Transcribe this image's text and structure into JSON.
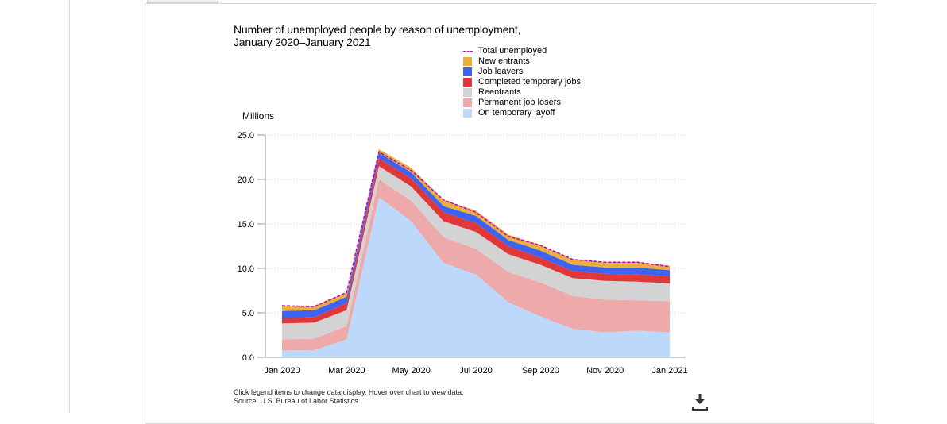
{
  "chart_data": {
    "type": "area",
    "stacked": true,
    "title_lines": [
      "Number of unemployed people by reason of unemployment,",
      "January 2020–January 2021"
    ],
    "ylabel": "Millions",
    "ylim": [
      0,
      25
    ],
    "yticks": [
      "0.0",
      "5.0",
      "10.0",
      "15.0",
      "20.0",
      "25.0"
    ],
    "ytick_values": [
      0,
      5,
      10,
      15,
      20,
      25
    ],
    "x": [
      "Jan 2020",
      "Feb 2020",
      "Mar 2020",
      "Apr 2020",
      "May 2020",
      "Jun 2020",
      "Jul 2020",
      "Aug 2020",
      "Sep 2020",
      "Oct 2020",
      "Nov 2020",
      "Dec 2020",
      "Jan 2021"
    ],
    "xtick_labels": [
      "Jan 2020",
      "Mar 2020",
      "May 2020",
      "Jul 2020",
      "Sep 2020",
      "Nov 2020",
      "Jan 2021"
    ],
    "xtick_index": [
      0,
      2,
      4,
      6,
      8,
      10,
      12
    ],
    "grid": "horizontal-dotted",
    "legend_position": "top-right",
    "series": [
      {
        "name": "On temporary layoff",
        "color": "#bcd8fb",
        "values": [
          0.8,
          0.8,
          2.0,
          18.0,
          15.3,
          10.6,
          9.3,
          6.2,
          4.6,
          3.2,
          2.8,
          3.0,
          2.8
        ]
      },
      {
        "name": "Permanent job losers",
        "color": "#eeaaaa",
        "values": [
          1.2,
          1.3,
          1.5,
          2.0,
          2.3,
          2.9,
          2.9,
          3.4,
          3.8,
          3.7,
          3.7,
          3.4,
          3.5
        ]
      },
      {
        "name": "Reentrants",
        "color": "#d3d3d3",
        "values": [
          1.8,
          1.8,
          1.8,
          1.5,
          1.6,
          1.8,
          1.9,
          2.0,
          2.0,
          2.0,
          2.1,
          2.1,
          2.0
        ]
      },
      {
        "name": "Completed temporary jobs",
        "color": "#e03838",
        "values": [
          0.6,
          0.6,
          0.8,
          0.9,
          0.9,
          1.0,
          1.0,
          0.9,
          0.8,
          0.8,
          0.8,
          0.8,
          0.8
        ]
      },
      {
        "name": "Job leavers",
        "color": "#3f63f0",
        "values": [
          0.8,
          0.8,
          0.7,
          0.6,
          0.7,
          0.7,
          0.8,
          0.7,
          0.8,
          0.7,
          0.7,
          0.8,
          0.7
        ]
      },
      {
        "name": "New entrants",
        "color": "#e8b03c",
        "values": [
          0.6,
          0.5,
          0.5,
          0.4,
          0.5,
          0.7,
          0.6,
          0.6,
          0.6,
          0.6,
          0.6,
          0.6,
          0.5
        ]
      }
    ],
    "total": {
      "name": "Total unemployed",
      "color": "#c400c4",
      "values": [
        5.8,
        5.7,
        7.3,
        23.1,
        21.0,
        17.7,
        16.3,
        13.6,
        12.6,
        11.0,
        10.7,
        10.7,
        10.2
      ]
    }
  },
  "legend": [
    {
      "label": "Total unemployed",
      "color": "#c400c4",
      "kind": "dash"
    },
    {
      "label": "New entrants",
      "color": "#e8b03c",
      "kind": "box"
    },
    {
      "label": "Job leavers",
      "color": "#3f63f0",
      "kind": "box"
    },
    {
      "label": "Completed temporary jobs",
      "color": "#e03838",
      "kind": "box"
    },
    {
      "label": "Reentrants",
      "color": "#d3d3d3",
      "kind": "box"
    },
    {
      "label": "Permanent job losers",
      "color": "#eeaaaa",
      "kind": "box"
    },
    {
      "label": "On temporary layoff",
      "color": "#bcd8fb",
      "kind": "box"
    }
  ],
  "footnote": {
    "line1": "Click legend items to change data display. Hover over chart to view data.",
    "line2": "Source: U.S. Bureau of Labor Statistics."
  },
  "icons": {
    "download": "download-icon"
  }
}
